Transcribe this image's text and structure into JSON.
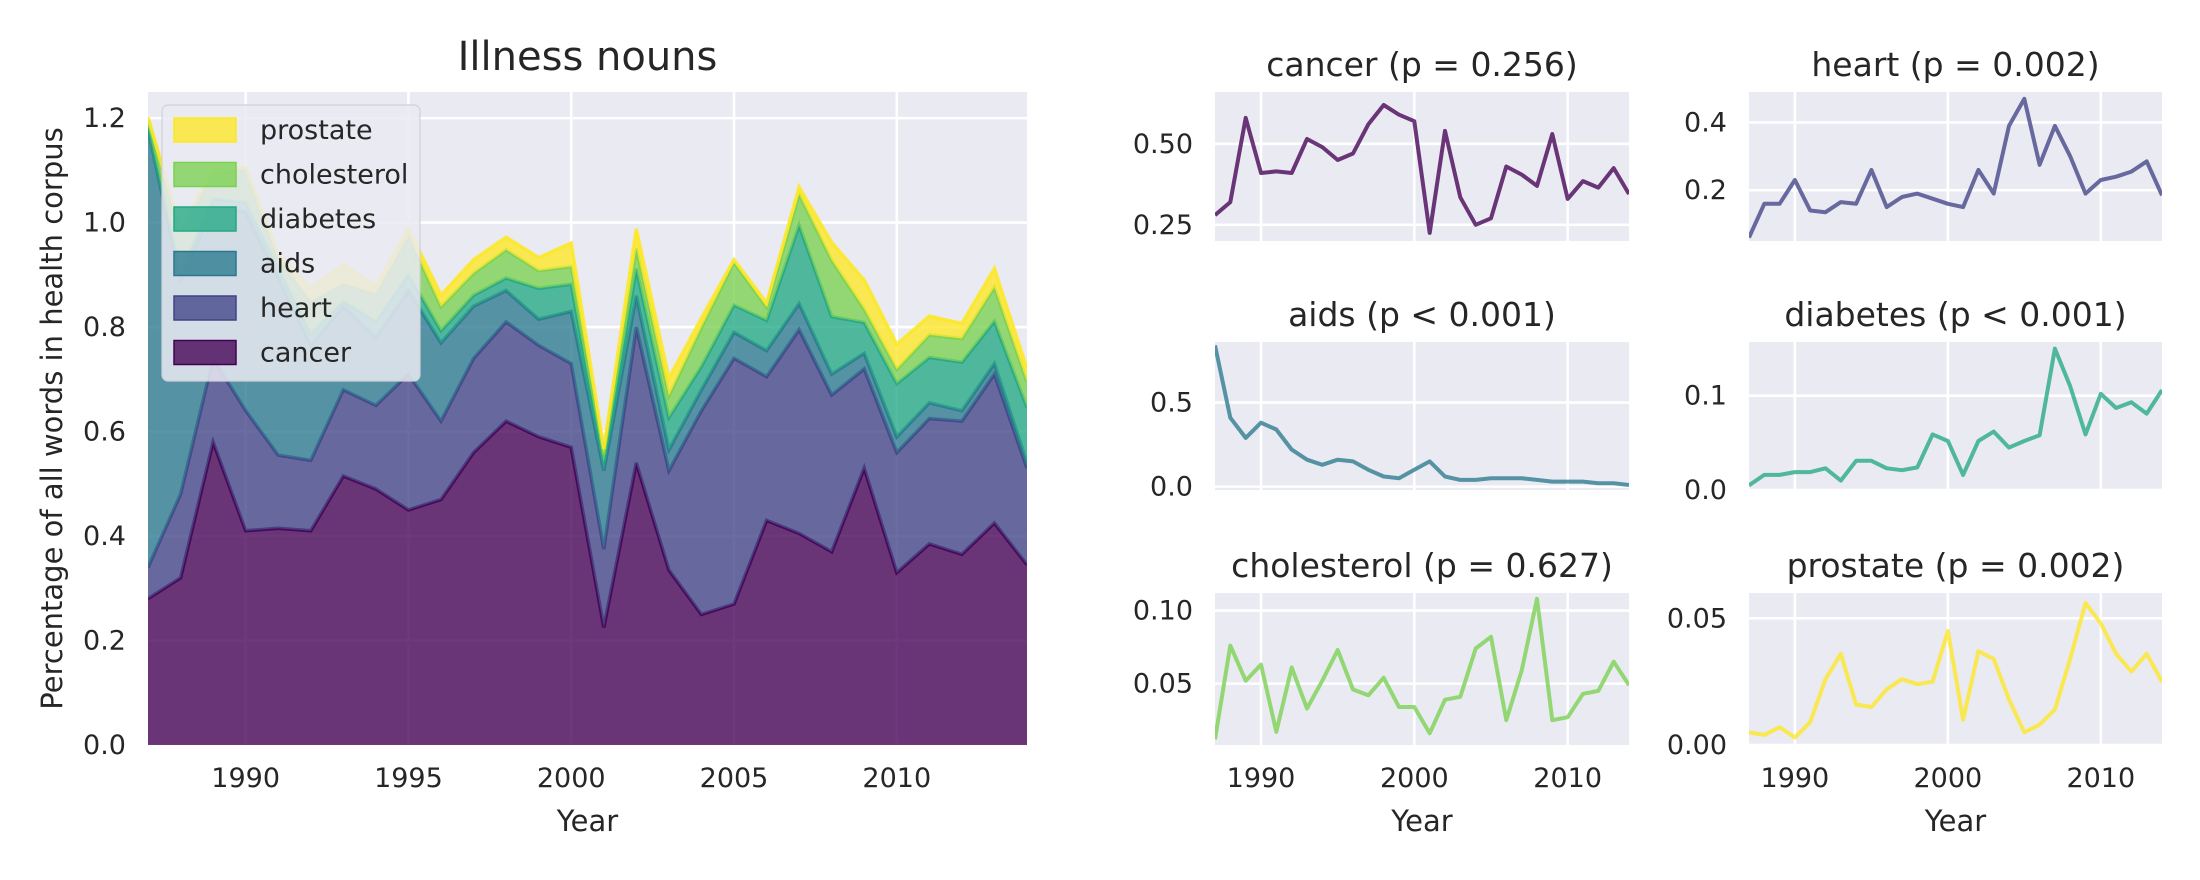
{
  "chart_data": [
    {
      "type": "area",
      "stacked": true,
      "title": "Illness nouns",
      "xlabel": "Year",
      "ylabel": "Percentage of all words in health corpus",
      "xlim": [
        1987,
        2014
      ],
      "ylim": [
        0,
        1.25
      ],
      "x_ticks": [
        1990,
        1995,
        2000,
        2005,
        2010
      ],
      "y_ticks": [
        "0.0",
        "0.2",
        "0.4",
        "0.6",
        "0.8",
        "1.0",
        "1.2"
      ],
      "grid": true,
      "legend_position": "top-left",
      "legend_order": [
        "prostate",
        "cholesterol",
        "diabetes",
        "aids",
        "heart",
        "cancer"
      ],
      "x": [
        1987,
        1988,
        1989,
        1990,
        1991,
        1992,
        1993,
        1994,
        1995,
        1996,
        1997,
        1998,
        1999,
        2000,
        2001,
        2002,
        2003,
        2004,
        2005,
        2006,
        2007,
        2008,
        2009,
        2010,
        2011,
        2012,
        2013,
        2014
      ],
      "series": [
        {
          "name": "cancer",
          "color": "#440154",
          "values": [
            0.28,
            0.32,
            0.58,
            0.41,
            0.415,
            0.41,
            0.515,
            0.49,
            0.45,
            0.47,
            0.56,
            0.62,
            0.59,
            0.57,
            0.225,
            0.54,
            0.335,
            0.25,
            0.27,
            0.43,
            0.405,
            0.37,
            0.53,
            0.33,
            0.385,
            0.365,
            0.425,
            0.345
          ]
        },
        {
          "name": "heart",
          "color": "#414487",
          "values": [
            0.06,
            0.16,
            0.16,
            0.23,
            0.14,
            0.135,
            0.165,
            0.16,
            0.26,
            0.15,
            0.18,
            0.19,
            0.175,
            0.16,
            0.15,
            0.26,
            0.19,
            0.39,
            0.47,
            0.275,
            0.39,
            0.3,
            0.19,
            0.23,
            0.24,
            0.255,
            0.285,
            0.185
          ]
        },
        {
          "name": "aids",
          "color": "#2a788e",
          "values": [
            0.84,
            0.41,
            0.29,
            0.38,
            0.34,
            0.22,
            0.16,
            0.13,
            0.16,
            0.15,
            0.1,
            0.06,
            0.05,
            0.1,
            0.15,
            0.06,
            0.04,
            0.04,
            0.05,
            0.05,
            0.05,
            0.04,
            0.03,
            0.03,
            0.03,
            0.02,
            0.02,
            0.01
          ]
        },
        {
          "name": "diabetes",
          "color": "#22a884",
          "values": [
            0.005,
            0.016,
            0.016,
            0.019,
            0.019,
            0.023,
            0.01,
            0.031,
            0.031,
            0.023,
            0.021,
            0.024,
            0.059,
            0.052,
            0.016,
            0.052,
            0.062,
            0.045,
            0.052,
            0.058,
            0.15,
            0.11,
            0.059,
            0.102,
            0.087,
            0.093,
            0.081,
            0.106
          ]
        },
        {
          "name": "cholesterol",
          "color": "#7ad151",
          "values": [
            0.012,
            0.076,
            0.052,
            0.063,
            0.017,
            0.061,
            0.033,
            0.052,
            0.073,
            0.046,
            0.042,
            0.054,
            0.034,
            0.034,
            0.016,
            0.039,
            0.041,
            0.074,
            0.082,
            0.025,
            0.059,
            0.108,
            0.025,
            0.027,
            0.043,
            0.045,
            0.065,
            0.049
          ]
        },
        {
          "name": "prostate",
          "color": "#fde725",
          "values": [
            0.005,
            0.004,
            0.007,
            0.003,
            0.009,
            0.026,
            0.036,
            0.016,
            0.015,
            0.022,
            0.026,
            0.024,
            0.025,
            0.045,
            0.01,
            0.037,
            0.034,
            0.018,
            0.005,
            0.008,
            0.014,
            0.034,
            0.056,
            0.048,
            0.036,
            0.029,
            0.036,
            0.025
          ]
        }
      ]
    },
    {
      "type": "line",
      "title": "cancer (p = 0.256)",
      "series_ref": "cancer",
      "ylim": [
        0.2,
        0.66
      ],
      "y_ticks": [
        0.25,
        0.5
      ],
      "y_tick_labels": [
        "0.25",
        "0.50"
      ]
    },
    {
      "type": "line",
      "title": "heart (p = 0.002)",
      "series_ref": "heart",
      "ylim": [
        0.05,
        0.49
      ],
      "y_ticks": [
        0.2,
        0.4
      ],
      "y_tick_labels": [
        "0.2",
        "0.4"
      ]
    },
    {
      "type": "line",
      "title": "aids (p < 0.001)",
      "series_ref": "aids",
      "ylim": [
        -0.02,
        0.86
      ],
      "y_ticks": [
        0.0,
        0.5
      ],
      "y_tick_labels": [
        "0.0",
        "0.5"
      ]
    },
    {
      "type": "line",
      "title": "diabetes (p < 0.001)",
      "series_ref": "diabetes",
      "ylim": [
        0.0,
        0.157
      ],
      "y_ticks": [
        0.0,
        0.1
      ],
      "y_tick_labels": [
        "0.0",
        "0.1"
      ]
    },
    {
      "type": "line",
      "title": "cholesterol (p = 0.627)",
      "series_ref": "cholesterol",
      "xlabel": "Year",
      "x_ticks": [
        1990,
        2000,
        2010
      ],
      "ylim": [
        0.008,
        0.112
      ],
      "y_ticks": [
        0.05,
        0.1
      ],
      "y_tick_labels": [
        "0.05",
        "0.10"
      ]
    },
    {
      "type": "line",
      "title": "prostate (p = 0.002)",
      "series_ref": "prostate",
      "xlabel": "Year",
      "x_ticks": [
        1990,
        2000,
        2010
      ],
      "ylim": [
        0.0,
        0.06
      ],
      "y_ticks": [
        0.0,
        0.05
      ],
      "y_tick_labels": [
        "0.00",
        "0.05"
      ]
    }
  ]
}
